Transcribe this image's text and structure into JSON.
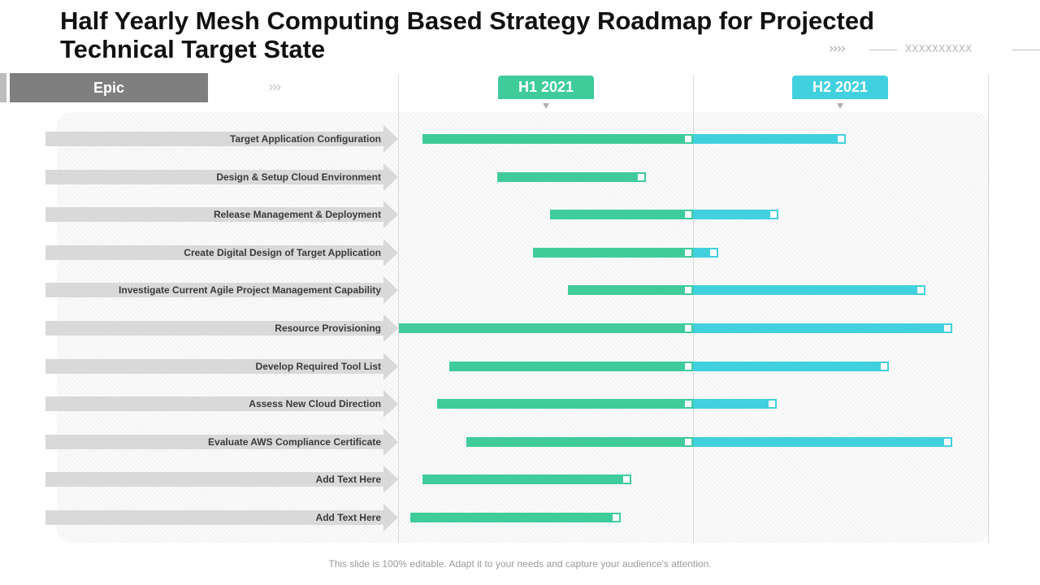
{
  "title": "Half Yearly Mesh Computing Based Strategy Roadmap for Projected Technical Target State",
  "header_decoration": {
    "chevrons": "››››",
    "placeholder": "XXXXXXXXXX"
  },
  "epic": {
    "label": "Epic",
    "chevrons": "›››"
  },
  "colors": {
    "h1": "#3fcc9a",
    "h2": "#41d0de",
    "epic": "#7f7f7f",
    "row_arrow": "#d9d9d9"
  },
  "chart_data": {
    "type": "gantt",
    "periods": [
      {
        "label": "H1 2021",
        "color": "#3fcc9a"
      },
      {
        "label": "H2 2021",
        "color": "#41d0de"
      }
    ],
    "tasks": [
      {
        "label": "Target Application  Configuration",
        "start": 0.08,
        "end": 1.52
      },
      {
        "label": "Design & Setup Cloud  Environment",
        "start": 0.335,
        "end": 0.84
      },
      {
        "label": "Release Management & Deployment",
        "start": 0.515,
        "end": 1.29
      },
      {
        "label": "Create Digital Design of Target Application",
        "start": 0.455,
        "end": 1.085
      },
      {
        "label": "Investigate Current Agile Project Management Capability",
        "start": 0.575,
        "end": 1.79
      },
      {
        "label": "Resource Provisioning",
        "start": 0.0,
        "end": 1.88
      },
      {
        "label": "Develop Required Tool List",
        "start": 0.17,
        "end": 1.665
      },
      {
        "label": "Assess New Cloud  Direction",
        "start": 0.13,
        "end": 1.285
      },
      {
        "label": "Evaluate AWS Compliance Certificate",
        "start": 0.23,
        "end": 1.88
      },
      {
        "label": "Add  Text Here",
        "start": 0.08,
        "end": 0.79
      },
      {
        "label": "Add  Text Here",
        "start": 0.04,
        "end": 0.755
      }
    ]
  },
  "footer": "This slide is 100% editable. Adapt it to your needs and capture your audience's attention."
}
